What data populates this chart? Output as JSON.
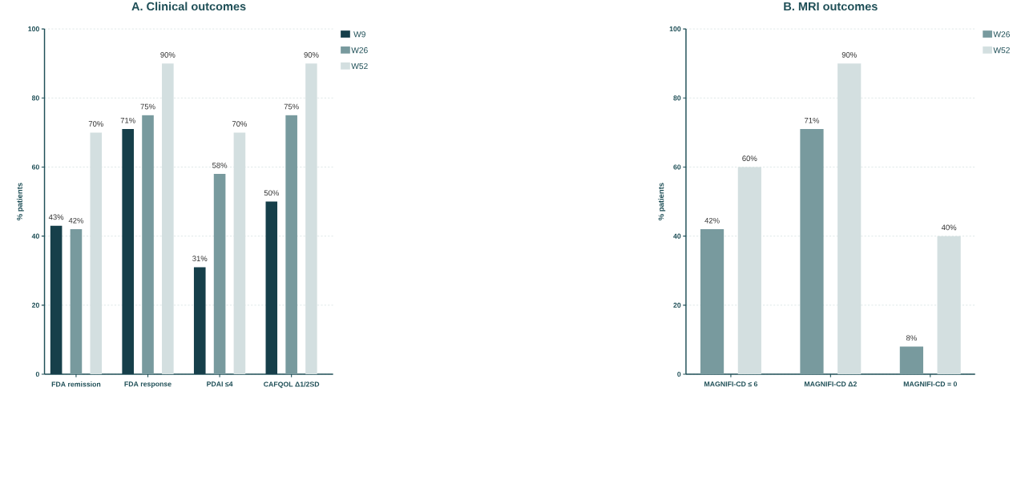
{
  "chart_data": [
    {
      "type": "bar",
      "title": "A. Clinical outcomes",
      "ylabel": "% patients",
      "categories": [
        "FDA remission",
        "FDA response",
        "PDAI ≤4",
        "CAFQOL Δ1/2SD"
      ],
      "series": [
        {
          "name": "W9",
          "color": "#163f4a",
          "values": [
            43,
            71,
            31,
            50
          ],
          "value_labels": [
            "43%",
            "71%",
            "31%",
            "50%"
          ]
        },
        {
          "name": "W26",
          "color": "#789a9e",
          "values": [
            42,
            75,
            58,
            75
          ],
          "value_labels": [
            "42%",
            "75%",
            "58%",
            "75%"
          ]
        },
        {
          "name": "W52",
          "color": "#d3dfe0",
          "values": [
            70,
            90,
            70,
            90
          ],
          "value_labels": [
            "70%",
            "90%",
            "70%",
            "90%"
          ]
        }
      ],
      "ylim": [
        0,
        100
      ],
      "yticks": [
        0,
        20,
        40,
        60,
        80,
        100
      ],
      "grid": "y",
      "legend": "top right"
    },
    {
      "type": "bar",
      "title": "B. MRI outcomes",
      "ylabel": "% patients",
      "categories": [
        "MAGNIFI-CD ≤ 6",
        "MAGNIFI-CD Δ2",
        "MAGNIFI-CD = 0"
      ],
      "series": [
        {
          "name": "W26",
          "color": "#789a9e",
          "values": [
            42,
            71,
            8
          ],
          "value_labels": [
            "42%",
            "71%",
            "8%"
          ]
        },
        {
          "name": "W52",
          "color": "#d3dfe0",
          "values": [
            60,
            90,
            40
          ],
          "value_labels": [
            "60%",
            "90%",
            "40%"
          ]
        }
      ],
      "ylim": [
        0,
        100
      ],
      "yticks": [
        0,
        20,
        40,
        60,
        80,
        100
      ],
      "grid": "y",
      "legend": "top right"
    }
  ]
}
